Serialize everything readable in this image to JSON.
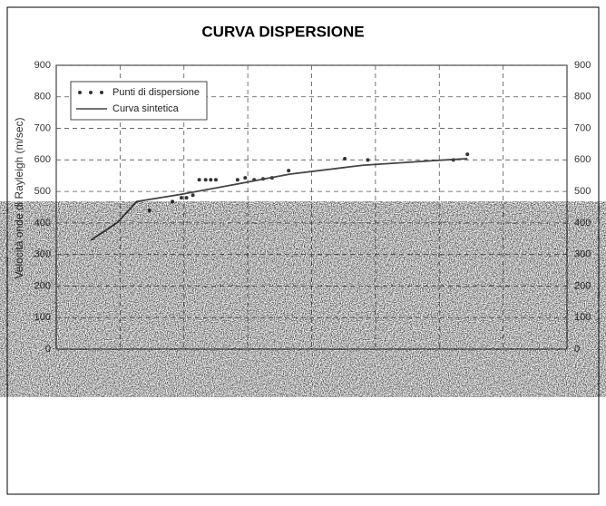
{
  "chart_data": {
    "type": "scatter-line",
    "title": "CURVA DISPERSIONE",
    "ylabel": "Velocità onde di Rayleigh (m/sec)",
    "xlim": [
      0,
      40
    ],
    "ylim": [
      0,
      900
    ],
    "yticks": [
      0,
      100,
      200,
      300,
      400,
      500,
      600,
      700,
      800,
      900
    ],
    "grid": true,
    "legend": "upper left",
    "series": [
      {
        "name": "Punti di dispersione",
        "kind": "points",
        "color": "#333333",
        "x": [
          7.3,
          9.1,
          9.8,
          10.2,
          10.7,
          11.2,
          11.7,
          12.1,
          12.5,
          14.2,
          14.8,
          15.5,
          16.2,
          16.9,
          18.2,
          22.6,
          24.4,
          31.1,
          32.2
        ],
        "values": [
          440,
          468,
          480,
          480,
          488,
          537,
          537,
          537,
          537,
          537,
          543,
          537,
          540,
          543,
          566,
          604,
          600,
          600,
          618
        ]
      },
      {
        "name": "Curva sintetica",
        "kind": "line",
        "color": "#444444",
        "x": [
          2.7,
          4.8,
          6.3,
          9.8,
          14.1,
          18.3,
          24.0,
          29.7,
          32.2
        ],
        "values": [
          345,
          402,
          468,
          491,
          523,
          555,
          583,
          598,
          604
        ]
      }
    ]
  }
}
